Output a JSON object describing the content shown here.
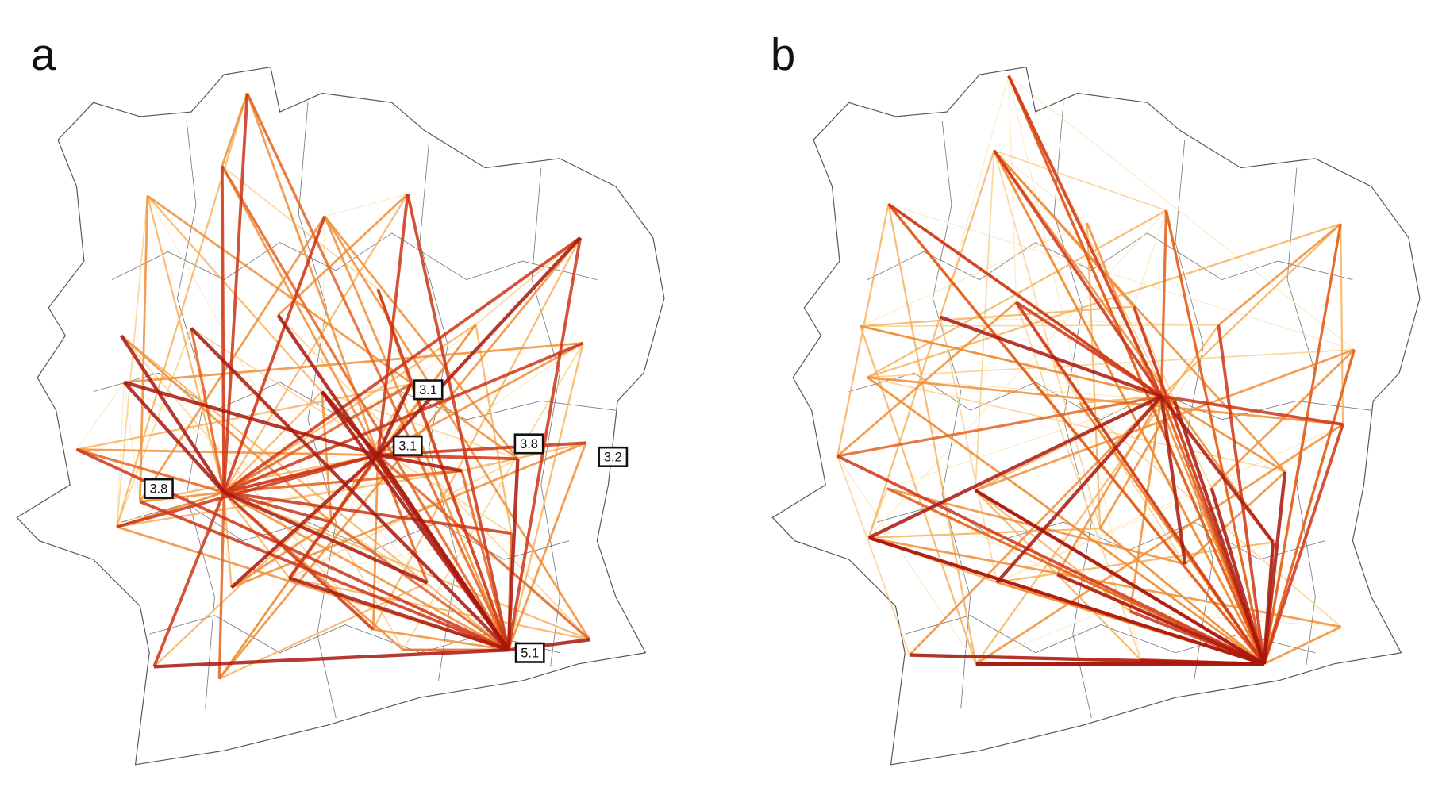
{
  "panels": [
    {
      "label": "a",
      "annotations": [
        "3.1",
        "3.1",
        "3.8",
        "3.8",
        "3.2",
        "5.1"
      ]
    },
    {
      "label": "b"
    }
  ]
}
